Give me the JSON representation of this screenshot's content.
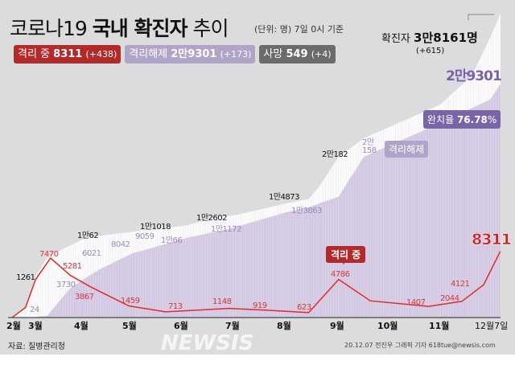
{
  "header": {
    "title_light": "코로나19",
    "title_bold": "국내 확진자",
    "title_tail": "추이",
    "unit_note": "(단위: 명) 7일 0시 기준"
  },
  "badges": [
    {
      "label": "격리 중",
      "value": "8311",
      "delta": "(+438)",
      "color": "#b22a2a"
    },
    {
      "label": "격리해제",
      "value": "2만9301",
      "delta": "(+173)",
      "color": "#b1a4c9"
    },
    {
      "label": "사망",
      "value": "549",
      "delta": "(+4)",
      "color": "#6b6b6b"
    }
  ],
  "total": {
    "label": "확진자",
    "value": "3만8161명",
    "delta": "(+615)"
  },
  "released_end": "2만9301",
  "recovery": {
    "label": "완치율",
    "value": "76.78",
    "unit": "%"
  },
  "callouts": {
    "isolated": "격리 중",
    "released": "격리해제"
  },
  "footer": {
    "source": "자료: 질병관리청",
    "credit": "20.12.07 전진우 그래픽 기자 618tue@newsis.com",
    "watermark": "NEWSIS"
  },
  "colors": {
    "background": "#dcdcde",
    "total_area": "#ffffff",
    "released_area": "#cfc3e0",
    "isolated_line": "#e02b2b"
  },
  "chart_data": {
    "type": "area",
    "x_tick_labels": [
      "2월",
      "3월",
      "4월",
      "5월",
      "6월",
      "7월",
      "8월",
      "9월",
      "10월",
      "11월",
      "12월7일"
    ],
    "series": [
      {
        "name": "확진자",
        "points": [
          [
            "02-18",
            31
          ],
          [
            "02-26",
            1261
          ],
          [
            "03-03",
            5186
          ],
          [
            "03-10",
            7513
          ],
          [
            "03-20",
            8652
          ],
          [
            "04-03",
            10062
          ],
          [
            "04-30",
            10765
          ],
          [
            "05-08",
            11018
          ],
          [
            "06-01",
            11541
          ],
          [
            "06-20",
            12602
          ],
          [
            "07-01",
            12850
          ],
          [
            "07-31",
            14305
          ],
          [
            "08-14",
            14873
          ],
          [
            "08-20",
            16346
          ],
          [
            "09-01",
            20182
          ],
          [
            "09-16",
            22504
          ],
          [
            "10-01",
            23889
          ],
          [
            "11-01",
            26732
          ],
          [
            "11-20",
            30403
          ],
          [
            "12-01",
            35163
          ],
          [
            "12-07",
            38161
          ]
        ]
      },
      {
        "name": "격리해제",
        "points": [
          [
            "02-18",
            12
          ],
          [
            "03-01",
            24
          ],
          [
            "03-10",
            247
          ],
          [
            "03-24",
            3730
          ],
          [
            "04-10",
            6021
          ],
          [
            "04-30",
            8042
          ],
          [
            "05-17",
            9059
          ],
          [
            "06-03",
            10066
          ],
          [
            "06-28",
            11172
          ],
          [
            "07-31",
            13183
          ],
          [
            "08-14",
            13863
          ],
          [
            "09-01",
            15198
          ],
          [
            "09-16",
            20158
          ],
          [
            "10-01",
            21590
          ],
          [
            "11-01",
            24395
          ],
          [
            "12-01",
            27400
          ],
          [
            "12-07",
            29301
          ]
        ]
      },
      {
        "name": "격리 중",
        "points": [
          [
            "02-18",
            19
          ],
          [
            "02-26",
            1261
          ],
          [
            "03-03",
            4750
          ],
          [
            "03-12",
            7470
          ],
          [
            "03-24",
            5281
          ],
          [
            "04-05",
            3867
          ],
          [
            "04-28",
            1459
          ],
          [
            "05-20",
            713
          ],
          [
            "06-27",
            1148
          ],
          [
            "07-20",
            919
          ],
          [
            "08-14",
            623
          ],
          [
            "09-01",
            4786
          ],
          [
            "09-20",
            2100
          ],
          [
            "10-25",
            1407
          ],
          [
            "11-14",
            2044
          ],
          [
            "11-27",
            4121
          ],
          [
            "12-07",
            8311
          ]
        ]
      }
    ],
    "labels": {
      "total": [
        "1261",
        "1만62",
        "1만1018",
        "1만2602",
        "1만4873",
        "2만182"
      ],
      "released": [
        "24",
        "3730",
        "6021",
        "8042",
        "9059",
        "1만66",
        "1만1172",
        "1만3863",
        "2만158"
      ],
      "isolated": [
        "7470",
        "5281",
        "3867",
        "1459",
        "713",
        "1148",
        "919",
        "623",
        "4786",
        "1407",
        "2044",
        "4121",
        "8311"
      ]
    },
    "ylim": [
      0,
      38161
    ]
  }
}
